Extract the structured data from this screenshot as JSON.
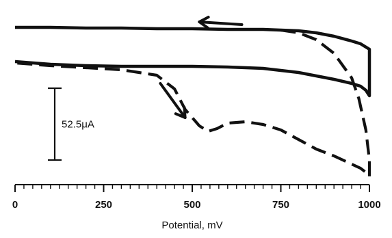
{
  "chart_data": {
    "type": "line",
    "title": "",
    "xlabel": "Potential, mV",
    "ylabel": "",
    "xlim": [
      0,
      1000
    ],
    "ylim": [
      -114.0,
      8.0
    ],
    "x_ticks": [
      "0",
      "250",
      "500",
      "750",
      "1000"
    ],
    "x_tick_values": [
      0,
      250,
      500,
      750,
      1000
    ],
    "minor_tick_step": 25,
    "grid": false,
    "legend": "none",
    "color": "#111111",
    "scale_bar": {
      "label": "52.5μA",
      "value": 52.5,
      "x": -120,
      "y_top": -44.5,
      "y_bottom": -97.0
    },
    "series": [
      {
        "style": "solid",
        "x": [
          0,
          100,
          200,
          300,
          400,
          500,
          600,
          700,
          750,
          800,
          850,
          900,
          950,
          975,
          1000,
          1000,
          990,
          975,
          950,
          900,
          800,
          700,
          600,
          500,
          400,
          300,
          200,
          100,
          0
        ],
        "y": [
          0.0,
          0.0,
          -0.5,
          -0.5,
          -1.0,
          -1.0,
          -1.5,
          -1.5,
          -2.0,
          -2.5,
          -4.0,
          -6.5,
          -10.0,
          -12.0,
          -16.0,
          -50.0,
          -46.0,
          -43.0,
          -41.0,
          -38.0,
          -33.0,
          -30.0,
          -29.0,
          -28.5,
          -28.5,
          -28.5,
          -28.0,
          -27.0,
          -25.0
        ]
      },
      {
        "style": "dashed",
        "x": [
          750,
          800,
          850,
          900,
          950,
          970,
          990,
          1000,
          1000,
          990,
          975,
          950,
          900,
          850,
          800,
          750,
          700,
          650,
          600,
          570,
          545,
          520,
          480,
          450,
          400,
          350,
          300,
          200,
          100,
          0
        ],
        "y": [
          -2.0,
          -4.0,
          -9.0,
          -19.0,
          -37.0,
          -52.0,
          -75.0,
          -97.0,
          -109.0,
          -106.0,
          -103.0,
          -100.0,
          -94.0,
          -89.0,
          -82.0,
          -75.0,
          -71.0,
          -69.0,
          -70.0,
          -74.0,
          -76.0,
          -72.0,
          -60.0,
          -45.0,
          -35.0,
          -33.0,
          -31.0,
          -29.5,
          -28.0,
          -26.0
        ]
      }
    ],
    "arrows": [
      {
        "direction": "reverse-sweep",
        "x1": 640,
        "y1": 2.0,
        "x2": 520,
        "y2": 4.0
      },
      {
        "direction": "forward-sweep",
        "x1": 410,
        "y1": -41.0,
        "x2": 480,
        "y2": -66.0
      }
    ]
  }
}
